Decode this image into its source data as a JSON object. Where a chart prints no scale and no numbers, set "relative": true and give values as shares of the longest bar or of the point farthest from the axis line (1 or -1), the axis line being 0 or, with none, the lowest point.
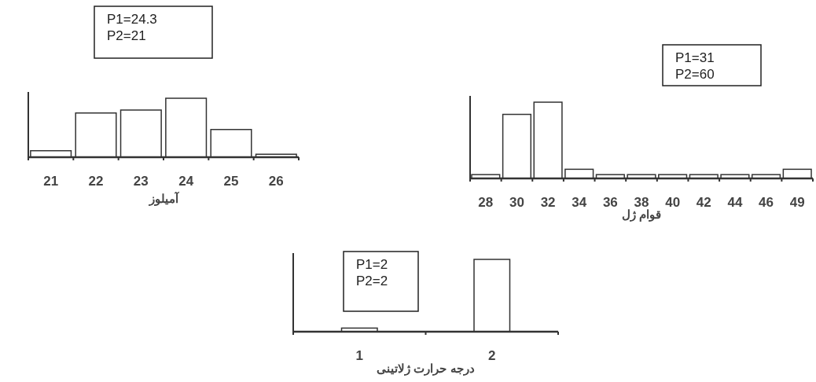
{
  "chart_data": [
    {
      "type": "bar",
      "relative": true,
      "categories": [
        "21",
        "22",
        "23",
        "24",
        "25",
        "26"
      ],
      "values": [
        0.11,
        0.75,
        0.8,
        1,
        0.47,
        0.05
      ],
      "color": "#ffffff",
      "xlabel": "آمیلوز",
      "annotations": [
        "P1=24.3",
        "P2=21"
      ]
    },
    {
      "type": "bar",
      "relative": true,
      "categories": [
        "28",
        "30",
        "32",
        "34",
        "36",
        "38",
        "40",
        "42",
        "44",
        "46",
        "49"
      ],
      "values": [
        0.05,
        0.84,
        1,
        0.12,
        0.05,
        0.05,
        0.05,
        0.05,
        0.05,
        0.05,
        0.12
      ],
      "color": "#ffffff",
      "xlabel": "قوام ژل",
      "annotations": [
        "P1=31",
        "P2=60"
      ]
    },
    {
      "type": "bar",
      "relative": true,
      "categories": [
        "1",
        "2"
      ],
      "values": [
        0.05,
        1
      ],
      "color": "#ffffff",
      "xlabel": "درجه حرارت ژلاتینی",
      "annotations": [
        "P1=2",
        "P2=2"
      ]
    }
  ]
}
